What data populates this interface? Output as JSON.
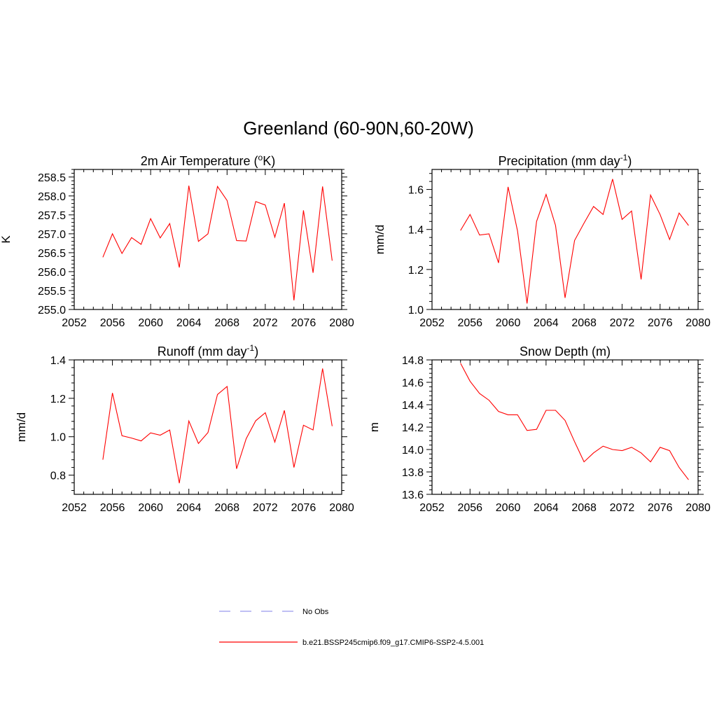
{
  "title": "Greenland (60-90N,60-20W)",
  "colors": {
    "model": "#ff0000",
    "obs": "#9999ee"
  },
  "legend": [
    {
      "label": "No Obs",
      "style": "dashed",
      "color": "#9999ee"
    },
    {
      "label": "b.e21.BSSP245cmip6.f09_g17.CMIP6-SSP2-4.5.001",
      "style": "solid",
      "color": "#ff0000"
    }
  ],
  "chart_data": [
    {
      "type": "line",
      "title": "2m Air Temperature (",
      "title_sup": "o",
      "title_after_sup": "K)",
      "ylabel": "K",
      "xlim": [
        2052,
        2080
      ],
      "ylim": [
        255.0,
        258.7
      ],
      "xticks": [
        2052,
        2056,
        2060,
        2064,
        2068,
        2072,
        2076,
        2080
      ],
      "yticks": [
        255.0,
        255.5,
        256.0,
        256.5,
        257.0,
        257.5,
        258.0,
        258.5
      ],
      "ytick_labels": [
        "255.0",
        "255.5",
        "256.0",
        "256.5",
        "257.0",
        "257.5",
        "258.0",
        "258.5"
      ],
      "x": [
        2055,
        2056,
        2057,
        2058,
        2059,
        2060,
        2061,
        2062,
        2063,
        2064,
        2065,
        2066,
        2067,
        2068,
        2069,
        2070,
        2071,
        2072,
        2073,
        2074,
        2075,
        2076,
        2077,
        2078,
        2079
      ],
      "y": [
        256.38,
        257.0,
        256.48,
        256.9,
        256.72,
        257.4,
        256.89,
        257.27,
        256.11,
        258.27,
        256.8,
        257.0,
        258.25,
        257.88,
        256.82,
        256.81,
        257.85,
        257.76,
        256.91,
        257.81,
        255.24,
        257.62,
        255.97,
        258.25,
        256.29
      ]
    },
    {
      "type": "line",
      "title": "Precipitation (mm day",
      "title_sup": "-1",
      "title_after_sup": ")",
      "ylabel": "mm/d",
      "xlim": [
        2052,
        2080
      ],
      "ylim": [
        1.0,
        1.7
      ],
      "xticks": [
        2052,
        2056,
        2060,
        2064,
        2068,
        2072,
        2076,
        2080
      ],
      "yticks": [
        1.0,
        1.2,
        1.4,
        1.6
      ],
      "ytick_labels": [
        "1.0",
        "1.2",
        "1.4",
        "1.6"
      ],
      "x": [
        2055,
        2056,
        2057,
        2058,
        2059,
        2060,
        2061,
        2062,
        2063,
        2064,
        2065,
        2066,
        2067,
        2068,
        2069,
        2070,
        2071,
        2072,
        2073,
        2074,
        2075,
        2076,
        2077,
        2078,
        2079
      ],
      "y": [
        1.395,
        1.475,
        1.372,
        1.378,
        1.233,
        1.613,
        1.393,
        1.03,
        1.44,
        1.575,
        1.42,
        1.058,
        1.345,
        1.432,
        1.515,
        1.475,
        1.652,
        1.45,
        1.492,
        1.15,
        1.572,
        1.475,
        1.35,
        1.482,
        1.42
      ]
    },
    {
      "type": "line",
      "title": "Runoff (mm day",
      "title_sup": "-1",
      "title_after_sup": ")",
      "ylabel": "mm/d",
      "xlim": [
        2052,
        2080
      ],
      "ylim": [
        0.7,
        1.4
      ],
      "xticks": [
        2052,
        2056,
        2060,
        2064,
        2068,
        2072,
        2076,
        2080
      ],
      "yticks": [
        0.8,
        1.0,
        1.2,
        1.4
      ],
      "ytick_labels": [
        "0.8",
        "1.0",
        "1.2",
        "1.4"
      ],
      "x": [
        2055,
        2056,
        2057,
        2058,
        2059,
        2060,
        2061,
        2062,
        2063,
        2064,
        2065,
        2066,
        2067,
        2068,
        2069,
        2070,
        2071,
        2072,
        2073,
        2074,
        2075,
        2076,
        2077,
        2078,
        2079
      ],
      "y": [
        0.88,
        1.228,
        1.005,
        0.993,
        0.978,
        1.02,
        1.008,
        1.035,
        0.758,
        1.082,
        0.965,
        1.022,
        1.22,
        1.262,
        0.833,
        0.99,
        1.083,
        1.125,
        0.972,
        1.137,
        0.84,
        1.06,
        1.035,
        1.355,
        1.055
      ]
    },
    {
      "type": "line",
      "title": "Snow Depth (m)",
      "title_sup": "",
      "title_after_sup": "",
      "ylabel": "m",
      "xlim": [
        2052,
        2080
      ],
      "ylim": [
        13.6,
        14.8
      ],
      "xticks": [
        2052,
        2056,
        2060,
        2064,
        2068,
        2072,
        2076,
        2080
      ],
      "yticks": [
        13.6,
        13.8,
        14.0,
        14.2,
        14.4,
        14.6,
        14.8
      ],
      "ytick_labels": [
        "13.6",
        "13.8",
        "14.0",
        "14.2",
        "14.4",
        "14.6",
        "14.8"
      ],
      "x": [
        2055,
        2056,
        2057,
        2058,
        2059,
        2060,
        2061,
        2062,
        2063,
        2064,
        2065,
        2066,
        2067,
        2068,
        2069,
        2070,
        2071,
        2072,
        2073,
        2074,
        2075,
        2076,
        2077,
        2078,
        2079
      ],
      "y": [
        14.77,
        14.61,
        14.5,
        14.44,
        14.34,
        14.31,
        14.31,
        14.17,
        14.18,
        14.35,
        14.35,
        14.26,
        14.07,
        13.89,
        13.97,
        14.03,
        14.0,
        13.99,
        14.02,
        13.97,
        13.89,
        14.02,
        13.99,
        13.84,
        13.73
      ]
    }
  ]
}
